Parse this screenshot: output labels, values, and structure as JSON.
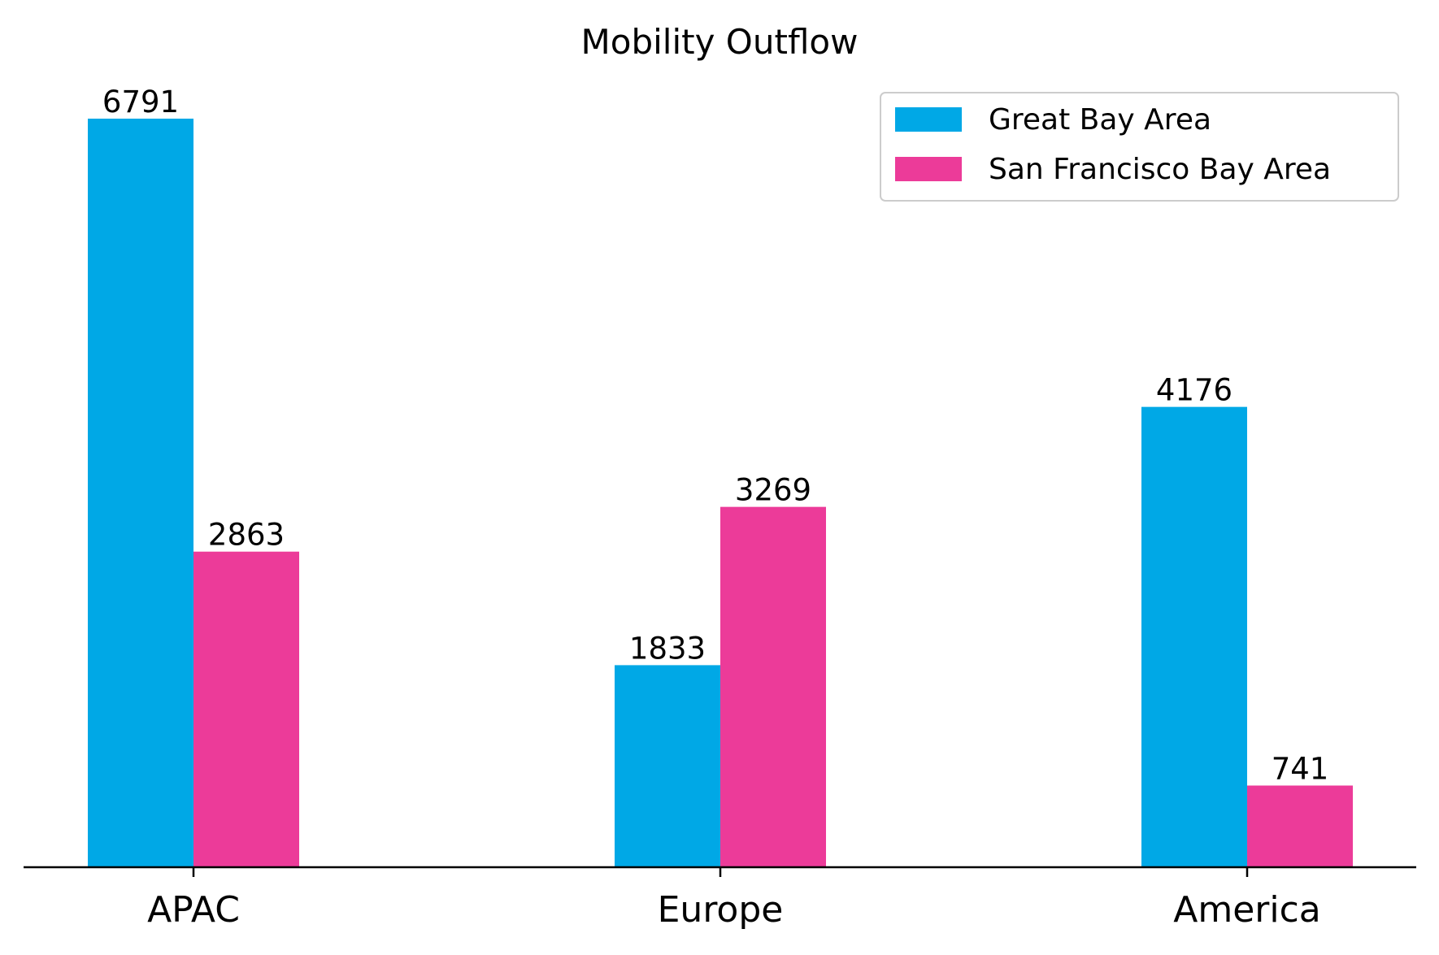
{
  "chart_data": {
    "type": "bar",
    "title": "Mobility Outflow",
    "xlabel": "",
    "ylabel": "",
    "categories": [
      "APAC",
      "Europe",
      "America"
    ],
    "series": [
      {
        "name": "Great Bay Area",
        "color": "#00A8E6",
        "values": [
          6791,
          1833,
          4176
        ]
      },
      {
        "name": "San Francisco Bay Area",
        "color": "#EC3B99",
        "values": [
          2863,
          3269,
          741
        ]
      }
    ],
    "ylim": [
      0,
      7130
    ],
    "y_axis_visible": false,
    "grid": false,
    "legend": "top-right",
    "data_labels": true
  }
}
